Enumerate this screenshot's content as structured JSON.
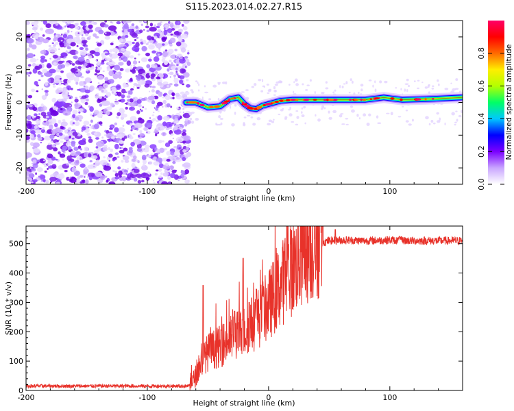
{
  "title": "S115.2023.014.02.27.R15",
  "chart_data": [
    {
      "type": "heatmap",
      "xlabel": "Height of straight line (km)",
      "ylabel": "Frequency (Hz)",
      "xlim": [
        -200,
        160
      ],
      "ylim": [
        -25,
        25
      ],
      "xticks": [
        -200,
        -100,
        0,
        100
      ],
      "yticks": [
        -20,
        -10,
        0,
        10,
        20
      ],
      "colorbar": {
        "label": "Normalized spectral amplitude",
        "ticks": [
          0.0,
          0.2,
          0.4,
          0.6,
          0.8
        ],
        "range": [
          0,
          1
        ],
        "colormap": [
          "#ffffff",
          "#c9a6ff",
          "#7b00ff",
          "#0000ff",
          "#00c8ff",
          "#00ff66",
          "#b4ff00",
          "#ffee00",
          "#ff6a00",
          "#ff0000",
          "#ff0066"
        ]
      },
      "noise_region_x": [
        -200,
        -68
      ],
      "signal_track": {
        "x": [
          -68,
          -60,
          -50,
          -40,
          -32,
          -25,
          -20,
          -15,
          -10,
          -5,
          0,
          5,
          10,
          20,
          40,
          60,
          80,
          95,
          110,
          130,
          160
        ],
        "y": [
          0.0,
          0.0,
          -1.5,
          -1.2,
          1.0,
          1.5,
          -0.5,
          -1.8,
          -2.0,
          -1.0,
          -0.5,
          0.0,
          0.5,
          0.8,
          0.8,
          0.8,
          0.8,
          1.5,
          0.8,
          1.0,
          1.5
        ]
      }
    },
    {
      "type": "line",
      "xlabel": "Height of straight line (km)",
      "ylabel": "SNR (10 * v/v)",
      "xlim": [
        -200,
        160
      ],
      "ylim": [
        0,
        560
      ],
      "xticks": [
        -200,
        -100,
        0,
        100
      ],
      "yticks": [
        0,
        100,
        200,
        300,
        400,
        500
      ],
      "color": "#e8322a",
      "envelope": {
        "x": [
          -200,
          -100,
          -65,
          -60,
          -55,
          -50,
          -40,
          -30,
          -20,
          -10,
          0,
          10,
          20,
          30,
          40,
          50,
          60,
          80,
          100,
          120,
          140,
          160
        ],
        "y": [
          15,
          15,
          15,
          50,
          100,
          130,
          150,
          180,
          200,
          240,
          290,
          360,
          420,
          470,
          500,
          510,
          512,
          510,
          512,
          510,
          510,
          510
        ]
      },
      "spikes": [
        {
          "x": -54,
          "y": 358
        },
        {
          "x": -39,
          "y": 205
        },
        {
          "x": -28,
          "y": 270
        },
        {
          "x": -21,
          "y": 450
        },
        {
          "x": -16,
          "y": 300
        },
        {
          "x": -10,
          "y": 345
        },
        {
          "x": 55,
          "y": 548
        },
        {
          "x": 108,
          "y": 525
        }
      ]
    }
  ]
}
